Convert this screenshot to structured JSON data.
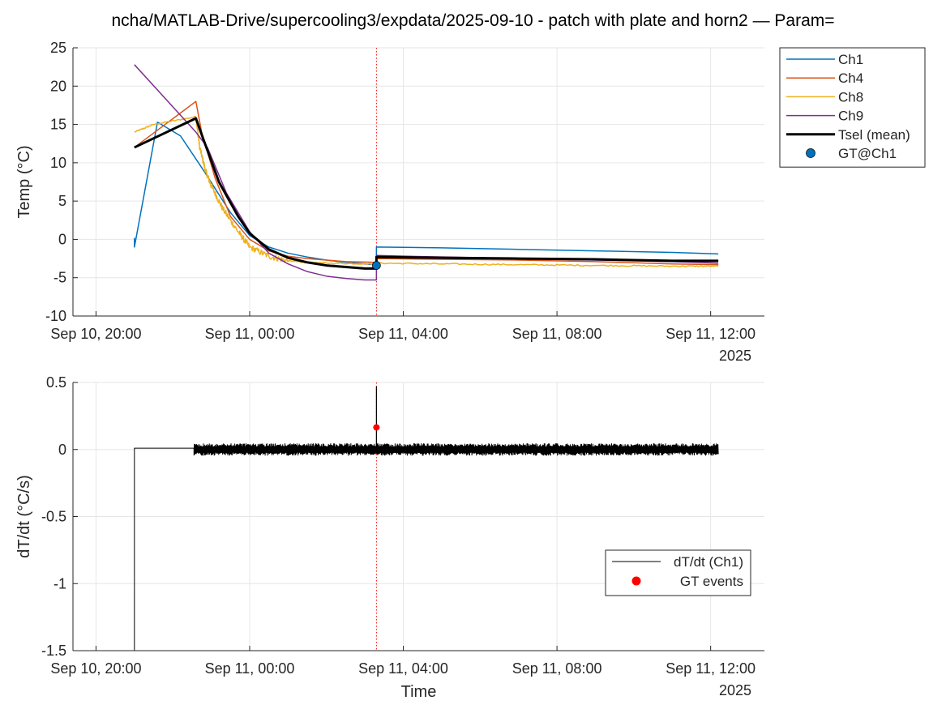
{
  "figure": {
    "title": "ncha/MATLAB-Drive/supercooling3/expdata/2025-09-10 - patch with plate and horn2 — Param="
  },
  "chart_data": [
    {
      "type": "line",
      "title": "",
      "xlabel": "",
      "ylabel": "Temp (°C)",
      "x_unit": "hours since Sep 10, 20:00 (2025)",
      "xlim": [
        -0.6,
        17.4
      ],
      "ylim": [
        -10,
        25
      ],
      "yticks": [
        -10,
        -5,
        0,
        5,
        10,
        15,
        20,
        25
      ],
      "xticks": [
        {
          "x": 0,
          "label": "Sep 10, 20:00"
        },
        {
          "x": 4,
          "label": "Sep 11, 00:00"
        },
        {
          "x": 8,
          "label": "Sep 11, 04:00"
        },
        {
          "x": 12,
          "label": "Sep 11, 08:00"
        },
        {
          "x": 16,
          "label": "Sep 11, 12:00"
        }
      ],
      "year_label": "2025",
      "grid": true,
      "legend": "outside-top-right",
      "vline": {
        "x": 7.3,
        "color": "#ff0000",
        "style": "dotted"
      },
      "series": [
        {
          "name": "Ch1",
          "color": "#0072BD",
          "width": 1.5,
          "points": [
            [
              1,
              0.2
            ],
            [
              1,
              -1
            ],
            [
              1.6,
              15.3
            ],
            [
              2.2,
              13.5
            ],
            [
              2.8,
              9
            ],
            [
              3.5,
              3.5
            ],
            [
              4,
              0.5
            ],
            [
              4.5,
              -1
            ],
            [
              5,
              -1.8
            ],
            [
              5.5,
              -2.3
            ],
            [
              6,
              -2.7
            ],
            [
              6.5,
              -3
            ],
            [
              7,
              -3.2
            ],
            [
              7.3,
              -3.3
            ],
            [
              7.3,
              -1
            ],
            [
              9,
              -1.1
            ],
            [
              11,
              -1.3
            ],
            [
              13,
              -1.5
            ],
            [
              15,
              -1.7
            ],
            [
              16.2,
              -1.9
            ]
          ]
        },
        {
          "name": "Ch4",
          "color": "#D95319",
          "width": 1.5,
          "points": [
            [
              1,
              12
            ],
            [
              2.6,
              18
            ],
            [
              2.75,
              14
            ],
            [
              3.1,
              8
            ],
            [
              3.5,
              3
            ],
            [
              4,
              0
            ],
            [
              4.5,
              -1.5
            ],
            [
              5,
              -2.2
            ],
            [
              5.5,
              -2.5
            ],
            [
              6,
              -2.7
            ],
            [
              6.5,
              -2.9
            ],
            [
              7.3,
              -3
            ],
            [
              7.3,
              -2.5
            ],
            [
              9,
              -2.6
            ],
            [
              11,
              -2.7
            ],
            [
              13,
              -2.9
            ],
            [
              15,
              -3.2
            ],
            [
              16.2,
              -3.3
            ]
          ]
        },
        {
          "name": "Ch8",
          "color": "#EDB120",
          "width": 1.5,
          "jitter": 0.5,
          "points": [
            [
              1,
              14
            ],
            [
              1.5,
              15
            ],
            [
              2.6,
              16
            ],
            [
              2.7,
              12
            ],
            [
              2.85,
              9
            ],
            [
              3,
              7
            ],
            [
              3.3,
              4
            ],
            [
              3.7,
              1
            ],
            [
              4,
              -1
            ],
            [
              4.5,
              -2.2
            ],
            [
              5,
              -2.8
            ],
            [
              5.5,
              -3
            ],
            [
              6,
              -3.1
            ],
            [
              7.3,
              -3.2
            ],
            [
              7.3,
              -3.1
            ],
            [
              9,
              -3.2
            ],
            [
              11,
              -3.3
            ],
            [
              13,
              -3.4
            ],
            [
              15,
              -3.5
            ],
            [
              16.2,
              -3.5
            ]
          ]
        },
        {
          "name": "Ch9",
          "color": "#7E2F8E",
          "width": 1.5,
          "points": [
            [
              1,
              22.8
            ],
            [
              2.6,
              14
            ],
            [
              2.9,
              12
            ],
            [
              3.4,
              6
            ],
            [
              4,
              1
            ],
            [
              4.5,
              -1.8
            ],
            [
              5,
              -3.2
            ],
            [
              5.5,
              -4.2
            ],
            [
              6,
              -4.8
            ],
            [
              6.5,
              -5.1
            ],
            [
              7,
              -5.3
            ],
            [
              7.3,
              -5.3
            ],
            [
              7.3,
              -2.1
            ],
            [
              9,
              -2.3
            ],
            [
              11,
              -2.5
            ],
            [
              13,
              -2.7
            ],
            [
              15,
              -2.9
            ],
            [
              16.2,
              -3.1
            ]
          ]
        },
        {
          "name": "Tsel (mean)",
          "color": "#000000",
          "width": 3,
          "points": [
            [
              1,
              12
            ],
            [
              2.6,
              15.8
            ],
            [
              2.8,
              13
            ],
            [
              3.2,
              7.5
            ],
            [
              3.7,
              3
            ],
            [
              4,
              0.8
            ],
            [
              4.5,
              -1.3
            ],
            [
              5,
              -2.4
            ],
            [
              5.5,
              -3
            ],
            [
              6,
              -3.4
            ],
            [
              6.5,
              -3.6
            ],
            [
              7,
              -3.8
            ],
            [
              7.3,
              -3.8
            ],
            [
              7.3,
              -2.3
            ],
            [
              9,
              -2.4
            ],
            [
              11,
              -2.5
            ],
            [
              13,
              -2.6
            ],
            [
              15,
              -2.8
            ],
            [
              16.2,
              -2.8
            ]
          ]
        }
      ],
      "markers": [
        {
          "name": "GT@Ch1",
          "color": "#0072BD",
          "x": 7.3,
          "y": -3.4
        }
      ]
    },
    {
      "type": "line",
      "title": "",
      "xlabel": "Time",
      "ylabel": "dT/dt (°C/s)",
      "x_unit": "hours since Sep 10, 20:00 (2025)",
      "xlim": [
        -0.6,
        17.4
      ],
      "ylim": [
        -1.5,
        0.5
      ],
      "yticks": [
        -1.5,
        -1,
        -0.5,
        0,
        0.5
      ],
      "xticks": [
        {
          "x": 0,
          "label": "Sep 10, 20:00"
        },
        {
          "x": 4,
          "label": "Sep 11, 00:00"
        },
        {
          "x": 8,
          "label": "Sep 11, 04:00"
        },
        {
          "x": 12,
          "label": "Sep 11, 08:00"
        },
        {
          "x": 16,
          "label": "Sep 11, 12:00"
        }
      ],
      "year_label": "2025",
      "grid": true,
      "legend": "lower-right",
      "vline": {
        "x": 7.3,
        "color": "#ff0000",
        "style": "dotted"
      },
      "series": [
        {
          "name": "dT/dt (Ch1)",
          "color": "#000000",
          "width": 1,
          "flat": [
            [
              1,
              0.01
            ],
            [
              2.55,
              0.01
            ]
          ],
          "noise": {
            "from": 2.55,
            "to": 16.2,
            "center": 0,
            "amplitude": 0.04
          },
          "drop": {
            "x": 1,
            "from": 0.01,
            "to": -1.5
          },
          "spike": {
            "x": 7.3,
            "from": 0,
            "to": 0.47
          }
        }
      ],
      "markers": [
        {
          "name": "GT events",
          "color": "#ff0000",
          "x": 7.3,
          "y": 0.165
        }
      ]
    }
  ]
}
